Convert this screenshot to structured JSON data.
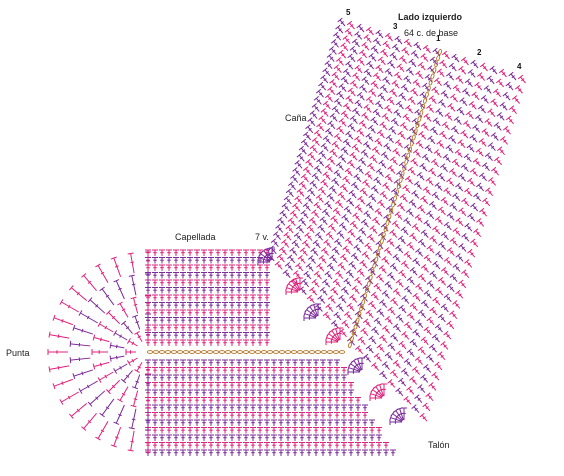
{
  "labels": {
    "side": "Lado izquierdo",
    "base": "64 c. de base",
    "cana": "Caña",
    "capellada": "Capellada",
    "seven_v": "7 v.",
    "punta": "Punta",
    "talon": "Talón"
  },
  "row_numbers": [
    "1",
    "2",
    "3",
    "4",
    "5"
  ],
  "colors": {
    "pink": "#e0207a",
    "purple": "#7a2a9a",
    "chain": "#b07020"
  }
}
